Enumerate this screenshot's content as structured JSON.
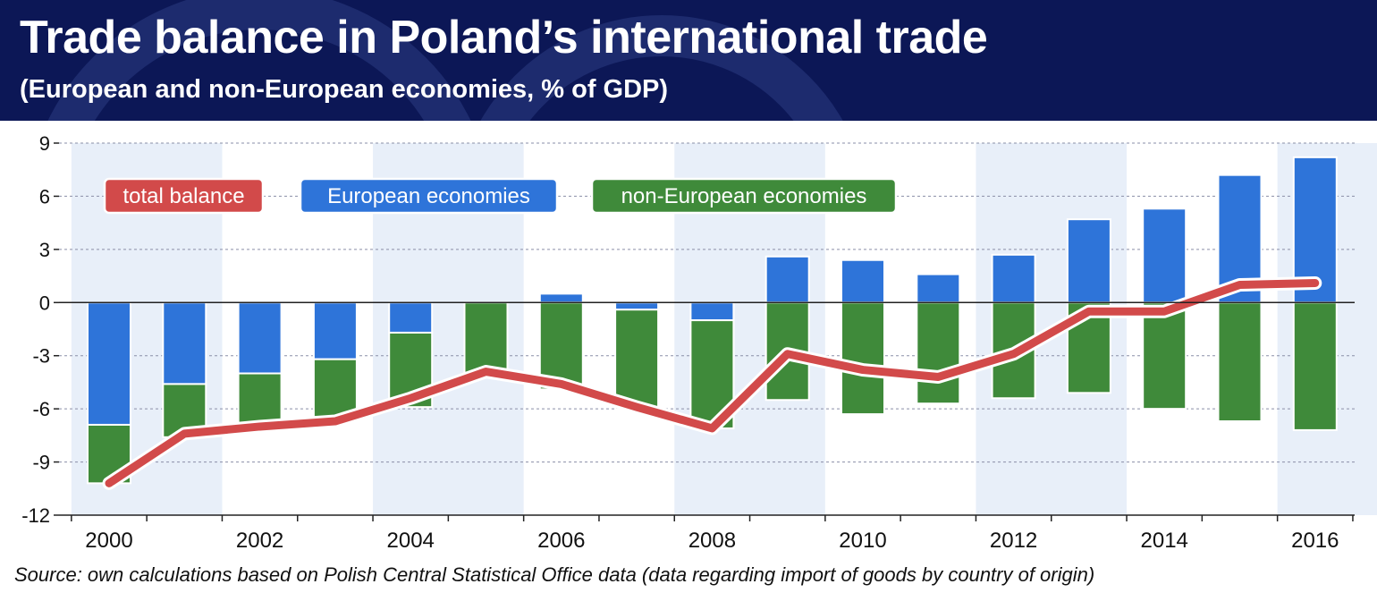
{
  "header": {
    "title": "Trade balance in Poland’s international trade",
    "subtitle": "(European and non-European economies, % of GDP)",
    "colors": {
      "background": "#0c1756",
      "text": "#ffffff"
    }
  },
  "source": "Source: own calculations based on Polish Central Statistical Office data (data regarding import of goods by country of origin)",
  "chart_data": {
    "type": "bar",
    "stacked": true,
    "categories": [
      2000,
      2001,
      2002,
      2003,
      2004,
      2005,
      2006,
      2007,
      2008,
      2009,
      2010,
      2011,
      2012,
      2013,
      2014,
      2015,
      2016
    ],
    "tick_labels": [
      "2000",
      "2002",
      "2004",
      "2006",
      "2008",
      "2010",
      "2012",
      "2014",
      "2016"
    ],
    "y_ticks": [
      9,
      6,
      3,
      0,
      -3,
      -6,
      -9,
      -12
    ],
    "y_tick_labels": [
      "9",
      "6",
      "3",
      "0",
      "-3",
      "-6",
      "-9",
      "-12"
    ],
    "ylim": [
      -12,
      9
    ],
    "grid": "horizontal dashed",
    "legend_placement": "top-left",
    "series": [
      {
        "name": "European economies",
        "type": "bar",
        "color": "#2e74d9",
        "values": [
          -6.9,
          -4.6,
          -4.0,
          -3.2,
          -1.7,
          0.0,
          0.5,
          -0.4,
          -1.0,
          2.6,
          2.4,
          1.6,
          2.7,
          4.7,
          5.3,
          7.2,
          8.2
        ]
      },
      {
        "name": "non-European economies",
        "type": "bar",
        "color": "#3f8a3a",
        "values": [
          -3.3,
          -3.0,
          -3.0,
          -3.4,
          -4.2,
          -4.0,
          -4.9,
          -5.6,
          -6.1,
          -5.5,
          -6.3,
          -5.7,
          -5.4,
          -5.1,
          -6.0,
          -6.7,
          -7.2
        ]
      },
      {
        "name": "total balance",
        "type": "line",
        "color": "#d24a4a",
        "values": [
          -10.2,
          -7.4,
          -7.0,
          -6.7,
          -5.4,
          -3.9,
          -4.6,
          -5.9,
          -7.1,
          -2.9,
          -3.8,
          -4.2,
          -2.9,
          -0.5,
          -0.5,
          1.0,
          1.1
        ]
      }
    ]
  }
}
